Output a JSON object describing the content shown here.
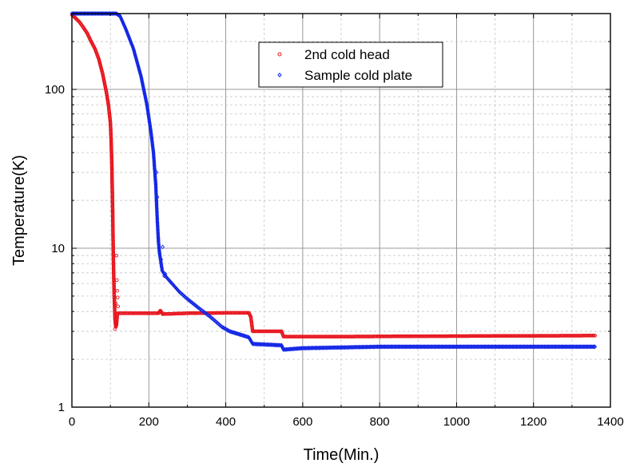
{
  "chart_data": {
    "type": "scatter",
    "title": "",
    "xlabel": "Time(Min.)",
    "ylabel": "Temperature(K)",
    "xlim": [
      0,
      1400
    ],
    "ylim": [
      1,
      300
    ],
    "yscale": "log",
    "x_ticks": [
      0,
      200,
      400,
      600,
      800,
      1000,
      1200,
      1400
    ],
    "x_tick_labels": [
      "0",
      "200",
      "400",
      "600",
      "800",
      "1000",
      "1200",
      "1400"
    ],
    "y_ticks": [
      1,
      10,
      100
    ],
    "y_tick_labels": [
      "1",
      "10",
      "100"
    ],
    "grid": true,
    "legend_position": "top-center",
    "series": [
      {
        "name": "2nd cold head",
        "color": "#e8141c",
        "marker": "circle",
        "points": [
          [
            0,
            295
          ],
          [
            10,
            280
          ],
          [
            20,
            265
          ],
          [
            30,
            245
          ],
          [
            40,
            225
          ],
          [
            50,
            200
          ],
          [
            60,
            180
          ],
          [
            70,
            155
          ],
          [
            80,
            125
          ],
          [
            90,
            95
          ],
          [
            95,
            80
          ],
          [
            100,
            62
          ],
          [
            102,
            48
          ],
          [
            104,
            32
          ],
          [
            106,
            17
          ],
          [
            108,
            8
          ],
          [
            110,
            5
          ],
          [
            112,
            3.6
          ],
          [
            114,
            3.2
          ],
          [
            116,
            3.3
          ],
          [
            118,
            3.8
          ],
          [
            120,
            3.9
          ],
          [
            150,
            3.9
          ],
          [
            200,
            3.9
          ],
          [
            225,
            3.9
          ],
          [
            230,
            4.05
          ],
          [
            236,
            3.85
          ],
          [
            300,
            3.9
          ],
          [
            400,
            3.92
          ],
          [
            460,
            3.92
          ],
          [
            465,
            3.7
          ],
          [
            470,
            3.0
          ],
          [
            545,
            3.0
          ],
          [
            550,
            2.78
          ],
          [
            700,
            2.78
          ],
          [
            1000,
            2.8
          ],
          [
            1360,
            2.82
          ]
        ],
        "scatter_points": [
          [
            104,
            32
          ],
          [
            106,
            17
          ],
          [
            108,
            8
          ],
          [
            112,
            3.1
          ],
          [
            114,
            4.5
          ],
          [
            116,
            9
          ],
          [
            117,
            6.3
          ],
          [
            118,
            5.4
          ],
          [
            119,
            4.9
          ],
          [
            120,
            4.3
          ]
        ]
      },
      {
        "name": "Sample cold plate",
        "color": "#1428e6",
        "marker": "diamond",
        "points": [
          [
            0,
            300
          ],
          [
            115,
            300
          ],
          [
            125,
            290
          ],
          [
            140,
            240
          ],
          [
            160,
            180
          ],
          [
            180,
            120
          ],
          [
            195,
            80
          ],
          [
            205,
            55
          ],
          [
            212,
            40
          ],
          [
            218,
            25
          ],
          [
            222,
            15
          ],
          [
            225,
            11
          ],
          [
            228,
            9.2
          ],
          [
            235,
            7.2
          ],
          [
            245,
            6.6
          ],
          [
            260,
            6
          ],
          [
            280,
            5.3
          ],
          [
            300,
            4.8
          ],
          [
            330,
            4.2
          ],
          [
            360,
            3.7
          ],
          [
            390,
            3.2
          ],
          [
            410,
            3.0
          ],
          [
            440,
            2.85
          ],
          [
            460,
            2.75
          ],
          [
            470,
            2.5
          ],
          [
            545,
            2.45
          ],
          [
            550,
            2.3
          ],
          [
            600,
            2.35
          ],
          [
            800,
            2.4
          ],
          [
            1000,
            2.4
          ],
          [
            1360,
            2.4
          ]
        ],
        "scatter_points": [
          [
            220,
            30
          ],
          [
            222,
            21
          ],
          [
            225,
            11.5
          ],
          [
            228,
            9.3
          ],
          [
            232,
            8.5
          ],
          [
            236,
            10.2
          ],
          [
            238,
            7
          ],
          [
            240,
            6.7
          ],
          [
            243,
            6.9
          ]
        ]
      }
    ]
  }
}
